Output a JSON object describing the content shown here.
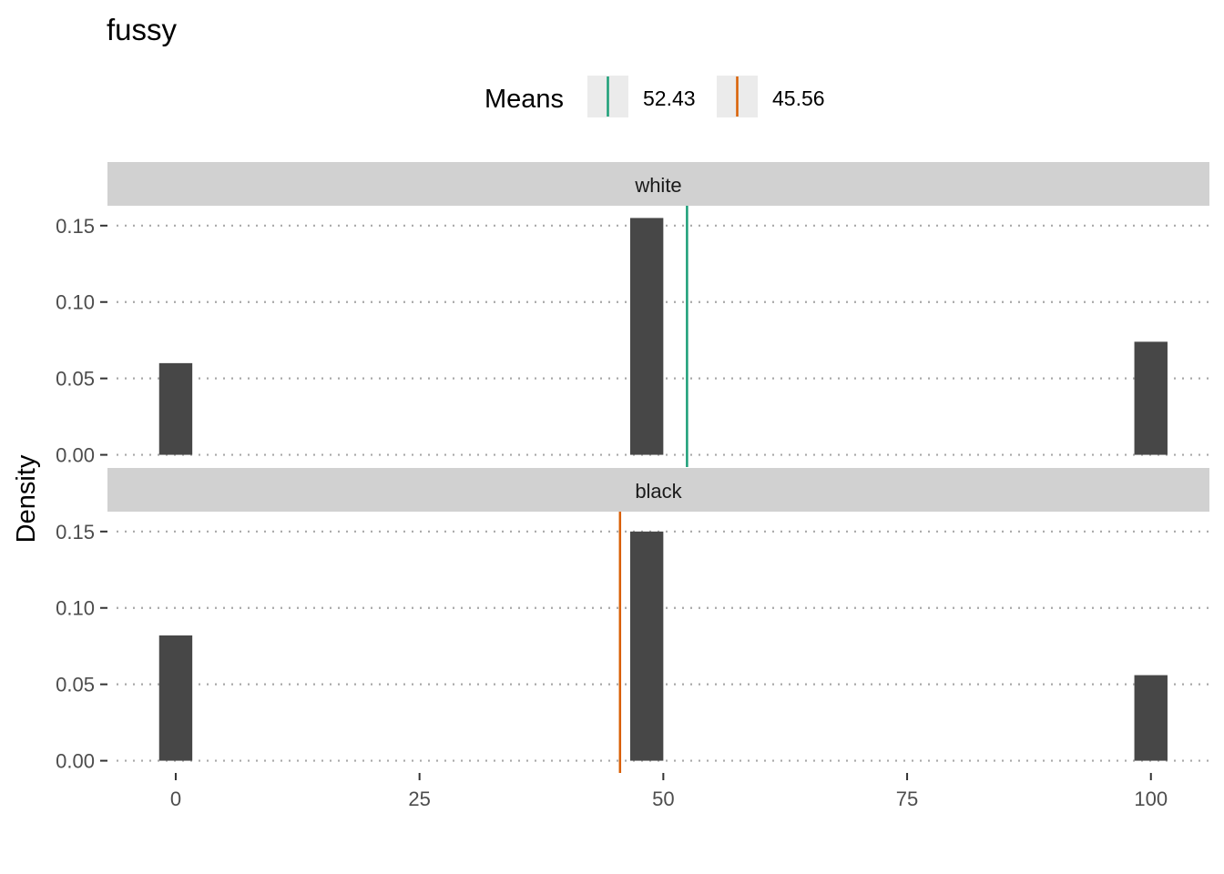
{
  "chart_data": {
    "type": "bar",
    "title": "fussy",
    "xlabel": "",
    "ylabel": "Density",
    "xlim": [
      -7,
      106
    ],
    "ylim": [
      -0.008,
      0.163
    ],
    "x_ticks": [
      0,
      25,
      50,
      75,
      100
    ],
    "x_tick_labels": [
      "0",
      "25",
      "50",
      "75",
      "100"
    ],
    "y_ticks": [
      0,
      0.05,
      0.1,
      0.15
    ],
    "y_tick_labels": [
      "0.00",
      "0.05",
      "0.10",
      "0.15"
    ],
    "bar_width": 3.4,
    "bar_color": "#474747",
    "grid": "horizontal-dotted",
    "legend": {
      "title": "Means",
      "placement": "top",
      "entries": [
        {
          "label": "52.43",
          "color": "#1b9e77"
        },
        {
          "label": "45.56",
          "color": "#d95f02"
        }
      ]
    },
    "panels": [
      {
        "name": "white",
        "x": [
          0,
          48.3,
          100
        ],
        "values": [
          0.06,
          0.155,
          0.074
        ],
        "mean": 52.43,
        "mean_color": "#1b9e77"
      },
      {
        "name": "black",
        "x": [
          0,
          48.3,
          100
        ],
        "values": [
          0.082,
          0.15,
          0.056
        ],
        "mean": 45.56,
        "mean_color": "#d95f02"
      }
    ]
  }
}
